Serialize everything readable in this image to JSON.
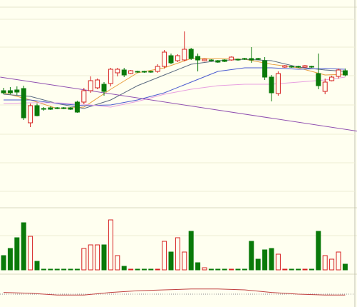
{
  "chart_data": [
    {
      "type": "candlestick",
      "ylim": [
        0,
        280
      ],
      "yticks": [
        22,
        62,
        102,
        143,
        184,
        224,
        263
      ],
      "grid": true,
      "up_color": "#d62020",
      "down_color": "#0a7a0a",
      "open": [
        163,
        163,
        164,
        166,
        118,
        142,
        138,
        139,
        139,
        139,
        139,
        147,
        147,
        163,
        167,
        172,
        173,
        188,
        192,
        187,
        190,
        190,
        190,
        190,
        197,
        212,
        205,
        206,
        221,
        211,
        205,
        206,
        205,
        206,
        206,
        207,
        208,
        208,
        208,
        205,
        182,
        159,
        196,
        197,
        197,
        196,
        197,
        187,
        162,
        177,
        183,
        191
      ],
      "high": [
        167,
        168,
        169,
        170,
        145,
        145,
        140,
        141,
        140,
        140,
        140,
        149,
        167,
        183,
        180,
        175,
        195,
        195,
        195,
        192,
        191,
        191,
        191,
        200,
        220,
        215,
        214,
        246,
        223,
        215,
        208,
        207,
        206,
        207,
        211,
        208,
        209,
        224,
        209,
        210,
        185,
        190,
        199,
        198,
        198,
        199,
        198,
        215,
        180,
        184,
        194,
        194
      ],
      "low": [
        158,
        158,
        157,
        122,
        112,
        127,
        135,
        136,
        137,
        137,
        136,
        132,
        144,
        160,
        165,
        156,
        169,
        183,
        182,
        186,
        188,
        188,
        188,
        188,
        194,
        200,
        203,
        204,
        206,
        190,
        204,
        204,
        202,
        203,
        205,
        205,
        206,
        202,
        206,
        178,
        148,
        156,
        195,
        195,
        195,
        195,
        195,
        165,
        158,
        176,
        180,
        183
      ],
      "close": [
        160,
        160,
        161,
        125,
        142,
        128,
        137,
        137,
        138,
        138,
        137,
        133,
        163,
        177,
        178,
        162,
        193,
        193,
        185,
        191,
        189,
        189,
        189,
        197,
        217,
        202,
        212,
        221,
        208,
        206,
        207,
        205,
        203,
        204,
        210,
        206,
        207,
        206,
        207,
        182,
        160,
        187,
        198,
        196,
        196,
        198,
        196,
        170,
        175,
        182,
        192,
        185
      ],
      "lines": [
        {
          "name": null,
          "color": "#e8a040",
          "x": [
            0,
            4,
            8,
            12,
            16,
            20,
            24,
            28,
            32,
            36,
            40,
            44,
            48,
            51
          ],
          "values": [
            160,
            150,
            138,
            140,
            165,
            188,
            195,
            208,
            208,
            207,
            200,
            195,
            185,
            186
          ]
        },
        {
          "name": null,
          "color": "#5a6a80",
          "x": [
            0,
            4,
            8,
            12,
            16,
            20,
            24,
            28,
            32,
            36,
            40,
            44,
            48,
            51
          ],
          "values": [
            158,
            155,
            145,
            138,
            150,
            170,
            185,
            200,
            205,
            207,
            205,
            196,
            192,
            190
          ]
        },
        {
          "name": null,
          "color": "#4a5ad0",
          "x": [
            0,
            4,
            8,
            12,
            16,
            20,
            24,
            28,
            32,
            36,
            40,
            44,
            48,
            51
          ],
          "values": [
            150,
            150,
            145,
            142,
            143,
            150,
            160,
            175,
            190,
            195,
            195,
            193,
            194,
            193
          ]
        },
        {
          "name": null,
          "color": "#e8a0e0",
          "x": [
            0,
            4,
            8,
            12,
            16,
            20,
            24,
            28,
            32,
            36,
            40,
            44,
            48,
            51
          ],
          "values": [
            145,
            146,
            146,
            144,
            140,
            148,
            158,
            165,
            170,
            172,
            172,
            175,
            178,
            182
          ]
        },
        {
          "name": null,
          "color": "#9050b0",
          "x": [
            -0.5,
            53
          ],
          "values": [
            182,
            106
          ]
        }
      ]
    },
    {
      "type": "volume",
      "ylim": [
        0,
        80
      ],
      "values": [
        20,
        30,
        45,
        66,
        47,
        12,
        1,
        1,
        1,
        1,
        1,
        1,
        30,
        35,
        35,
        35,
        70,
        20,
        5,
        1,
        1,
        1,
        1,
        1,
        40,
        25,
        45,
        25,
        54,
        10,
        3,
        1,
        1,
        1,
        1,
        1,
        1,
        40,
        15,
        28,
        30,
        22,
        1,
        1,
        1,
        1,
        1,
        54,
        20,
        15,
        25,
        8
      ]
    },
    {
      "type": "macd",
      "ylim": [
        -10,
        10
      ],
      "x": [
        0,
        4,
        8,
        12,
        16,
        20,
        24,
        28,
        32,
        36,
        40,
        44,
        48,
        51
      ],
      "values": [
        2,
        1,
        -1,
        -1,
        2,
        4,
        5,
        6,
        6,
        5,
        2,
        0,
        -1,
        -1
      ]
    }
  ]
}
